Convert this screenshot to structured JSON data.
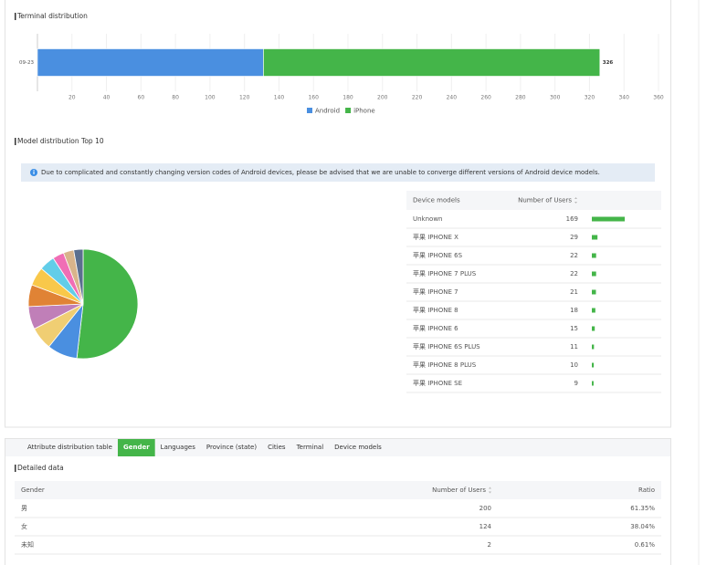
{
  "chart_data": [
    {
      "type": "bar",
      "orientation": "horizontal",
      "stacked": true,
      "title": "Terminal distribution",
      "categories": [
        "09-23"
      ],
      "series": [
        {
          "name": "Android",
          "color": "#4a8fe0",
          "values": [
            131
          ]
        },
        {
          "name": "iPhone",
          "color": "#44b549",
          "values": [
            195
          ]
        }
      ],
      "totals": [
        326
      ],
      "xlim": [
        0,
        360
      ],
      "xticks": [
        20,
        40,
        60,
        80,
        100,
        120,
        140,
        160,
        180,
        200,
        220,
        240,
        260,
        280,
        300,
        320,
        340,
        360
      ],
      "grid": true,
      "legend": "bottom"
    },
    {
      "type": "pie",
      "title": "Model distribution Top 10",
      "note": "Due to complicated and constantly changing version codes of Android devices, please be advised that we are unable to converge different versions of Android device models.",
      "columns": [
        "Device models",
        "Number of Users"
      ],
      "categories": [
        "Unknown",
        "苹果 IPHONE X",
        "苹果 IPHONE 6S",
        "苹果 IPHONE 7 PLUS",
        "苹果 IPHONE 7",
        "苹果 IPHONE 8",
        "苹果 IPHONE 6",
        "苹果 IPHONE 6S PLUS",
        "苹果 IPHONE 8 PLUS",
        "苹果 IPHONE SE"
      ],
      "values": [
        169,
        29,
        22,
        22,
        21,
        18,
        15,
        11,
        10,
        9
      ],
      "colors": [
        "#44b549",
        "#4a8fe0",
        "#f0ce73",
        "#c07fb8",
        "#e08335",
        "#f9c84a",
        "#62cde8",
        "#f06eb5",
        "#d8b48b",
        "#5b6f8f"
      ]
    }
  ],
  "tabs": {
    "items": [
      "Attribute distribution table",
      "Gender",
      "Languages",
      "Province (state)",
      "Cities",
      "Terminal",
      "Device models"
    ],
    "active": 1
  },
  "detail": {
    "title": "Detailed data",
    "columns": [
      "Gender",
      "Number of Users",
      "Ratio"
    ],
    "rows": [
      [
        "男",
        200,
        "61.35%"
      ],
      [
        "女",
        124,
        "38.04%"
      ],
      [
        "未知",
        2,
        "0.61%"
      ]
    ]
  }
}
